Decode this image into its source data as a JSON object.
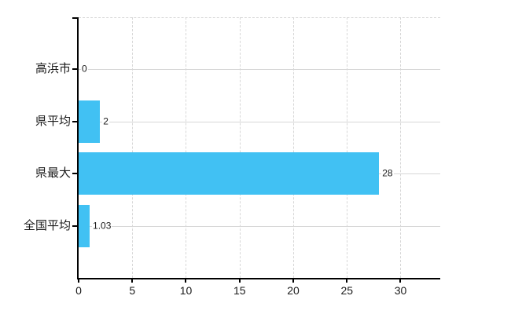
{
  "chart_data": {
    "type": "bar",
    "orientation": "horizontal",
    "title": "",
    "categories": [
      "高浜市",
      "県平均",
      "県最大",
      "全国平均"
    ],
    "values": [
      0,
      2,
      28,
      1.03
    ],
    "value_labels": [
      "0",
      "2",
      "28",
      "1.03"
    ],
    "x_ticks": [
      0,
      5,
      10,
      15,
      20,
      25,
      30
    ],
    "xlim": [
      0,
      33.7
    ],
    "xlabel": "",
    "ylabel": "",
    "legend_position": "none",
    "grid": {
      "vertical": "dashed at each x tick",
      "horizontal": "solid line through each category center",
      "top_border": "dashed"
    },
    "colors": {
      "bar": "#41c1f3",
      "grid": "#d7d7d7",
      "axis": "#000000",
      "label": "#1a1a1a",
      "background": "#ffffff"
    }
  }
}
